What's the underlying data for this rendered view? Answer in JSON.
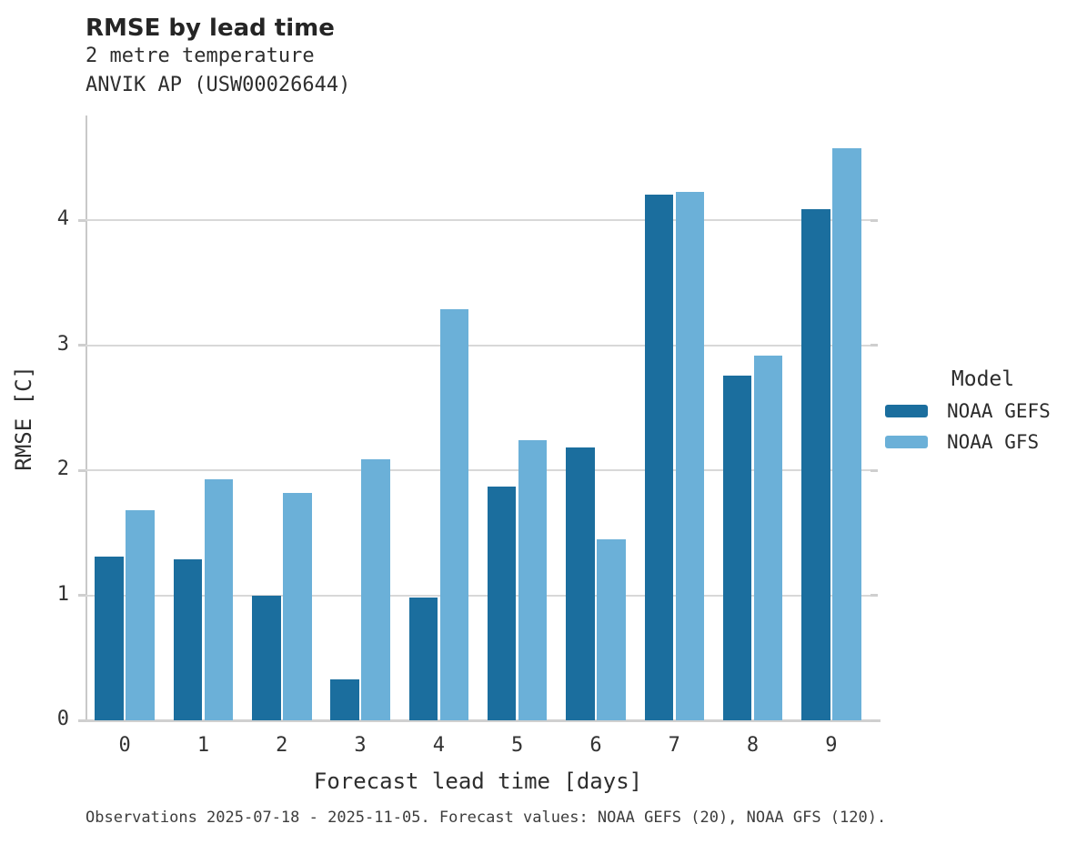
{
  "header": {
    "title": "RMSE by lead time",
    "subtitle1": "2 metre temperature",
    "subtitle2": "ANVIK AP (USW00026644)"
  },
  "chart_data": {
    "type": "bar",
    "title": "RMSE by lead time",
    "subtitle": [
      "2 metre temperature",
      "ANVIK AP (USW00026644)"
    ],
    "categories": [
      "0",
      "1",
      "2",
      "3",
      "4",
      "5",
      "6",
      "7",
      "8",
      "9"
    ],
    "series": [
      {
        "name": "NOAA GEFS",
        "color": "#1b6e9e",
        "values": [
          1.31,
          1.29,
          1.0,
          0.33,
          0.98,
          1.87,
          2.18,
          4.21,
          2.76,
          4.09
        ]
      },
      {
        "name": "NOAA GFS",
        "color": "#6bb0d8",
        "values": [
          1.68,
          1.93,
          1.82,
          2.09,
          3.29,
          2.24,
          1.45,
          4.23,
          2.92,
          4.58
        ]
      }
    ],
    "xlabel": "Forecast lead time [days]",
    "ylabel": "RMSE [C]",
    "ylim": [
      0,
      4.84
    ],
    "yticks": [
      0,
      1,
      2,
      3,
      4
    ],
    "grid": true,
    "gridline_color": "#d8d8d8",
    "axis_color": "#c9c9c9",
    "legend_title": "Model",
    "legend_position": "right"
  },
  "footer": {
    "text": "Observations 2025-07-18 - 2025-11-05. Forecast values: NOAA GEFS (20), NOAA GFS (120)."
  }
}
